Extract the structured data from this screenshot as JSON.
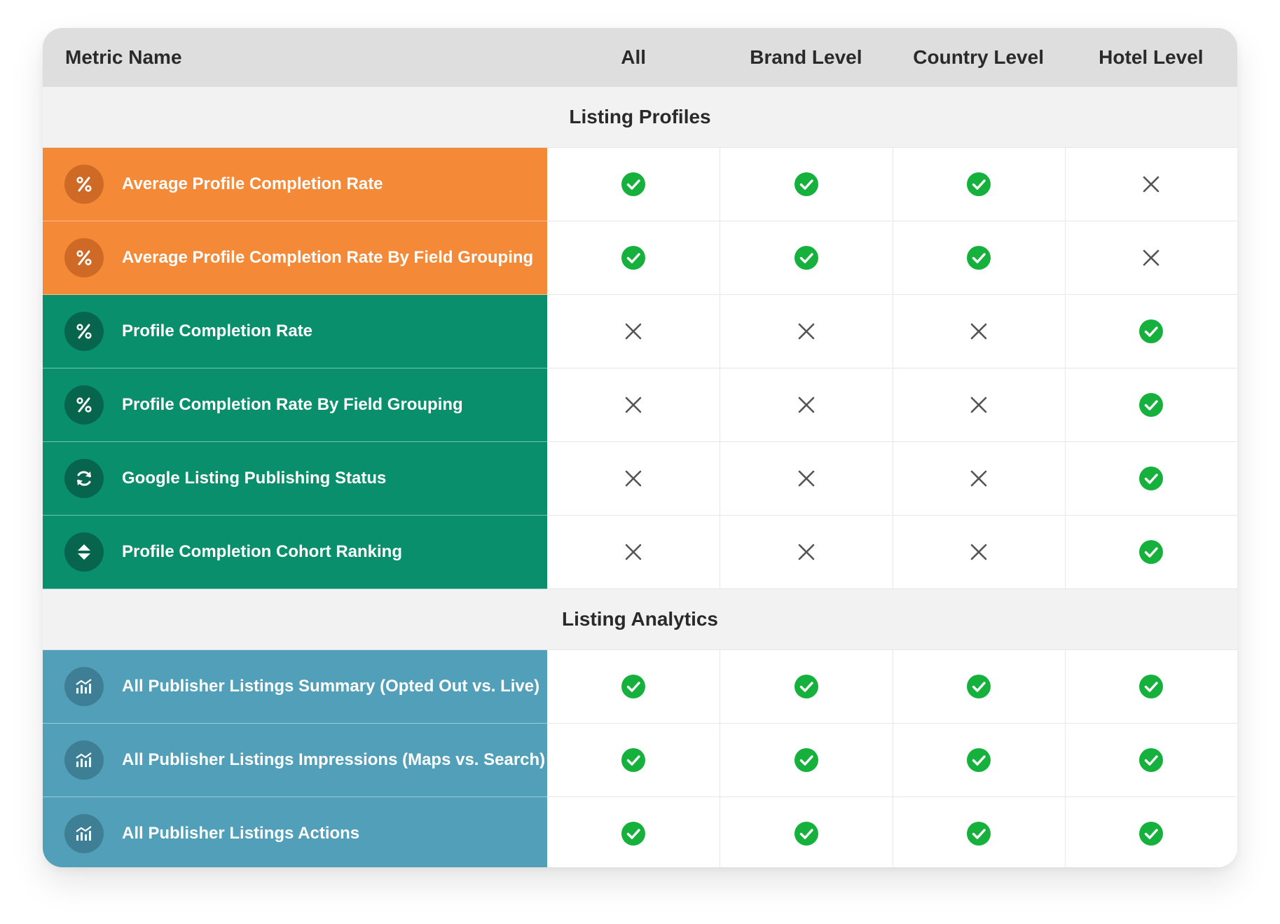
{
  "header": {
    "metric_name": "Metric Name",
    "columns": [
      "All",
      "Brand Level",
      "Country Level",
      "Hotel Level"
    ]
  },
  "sections": [
    {
      "title": "Listing Profiles",
      "rows": [
        {
          "label": "Average Profile Completion Rate",
          "icon": "percent-icon",
          "color": "#f48a38",
          "values": [
            true,
            true,
            true,
            false
          ]
        },
        {
          "label": "Average Profile Completion Rate By Field Grouping",
          "icon": "percent-icon",
          "color": "#f48a38",
          "values": [
            true,
            true,
            true,
            false
          ]
        },
        {
          "label": "Profile Completion Rate",
          "icon": "percent-icon",
          "color": "#0a8f6d",
          "values": [
            false,
            false,
            false,
            true
          ]
        },
        {
          "label": "Profile Completion Rate By Field Grouping",
          "icon": "percent-icon",
          "color": "#0a8f6d",
          "values": [
            false,
            false,
            false,
            true
          ]
        },
        {
          "label": "Google Listing Publishing Status",
          "icon": "refresh-icon",
          "color": "#0a8f6d",
          "values": [
            false,
            false,
            false,
            true
          ]
        },
        {
          "label": "Profile Completion Cohort Ranking",
          "icon": "sort-icon",
          "color": "#0a8f6d",
          "values": [
            false,
            false,
            false,
            true
          ]
        }
      ]
    },
    {
      "title": "Listing Analytics",
      "rows": [
        {
          "label": "All Publisher Listings Summary (Opted Out vs. Live)",
          "icon": "analytics-icon",
          "color": "#519fb8",
          "values": [
            true,
            true,
            true,
            true
          ]
        },
        {
          "label": "All Publisher Listings Impressions (Maps vs. Search)",
          "icon": "analytics-icon",
          "color": "#519fb8",
          "values": [
            true,
            true,
            true,
            true
          ]
        },
        {
          "label": "All Publisher Listings Actions",
          "icon": "analytics-icon",
          "color": "#519fb8",
          "values": [
            true,
            true,
            true,
            true
          ]
        }
      ]
    }
  ],
  "colors": {
    "check": "#15b13c",
    "cross": "#555555"
  }
}
